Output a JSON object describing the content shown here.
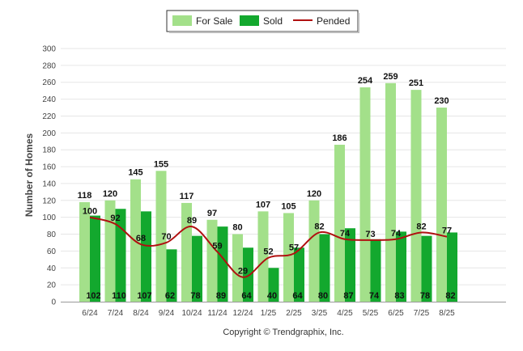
{
  "chart_data": {
    "type": "bar",
    "categories": [
      "6/24",
      "7/24",
      "8/24",
      "9/24",
      "10/24",
      "11/24",
      "12/24",
      "1/25",
      "2/25",
      "3/25",
      "4/25",
      "5/25",
      "6/25",
      "7/25",
      "8/25"
    ],
    "series": [
      {
        "name": "For Sale",
        "type": "bar",
        "color": "#a3e08a",
        "values": [
          118,
          120,
          145,
          155,
          117,
          97,
          80,
          107,
          105,
          120,
          186,
          254,
          259,
          251,
          230
        ]
      },
      {
        "name": "Sold",
        "type": "bar",
        "color": "#13a82e",
        "values": [
          102,
          110,
          107,
          62,
          78,
          89,
          64,
          40,
          64,
          80,
          87,
          74,
          83,
          78,
          82
        ]
      },
      {
        "name": "Pended",
        "type": "line",
        "color": "#b01010",
        "values": [
          100,
          92,
          68,
          70,
          89,
          59,
          29,
          52,
          57,
          82,
          74,
          73,
          74,
          82,
          77
        ]
      }
    ],
    "ylabel": "Number of Homes",
    "xlabel": "",
    "ylim": [
      0,
      300
    ],
    "yticks": [
      0,
      20,
      40,
      60,
      80,
      100,
      120,
      140,
      160,
      180,
      200,
      220,
      240,
      260,
      280,
      300
    ],
    "grid": true,
    "legend_position": "top-center"
  },
  "footer": {
    "copyright": "Copyright © Trendgraphix, Inc."
  }
}
